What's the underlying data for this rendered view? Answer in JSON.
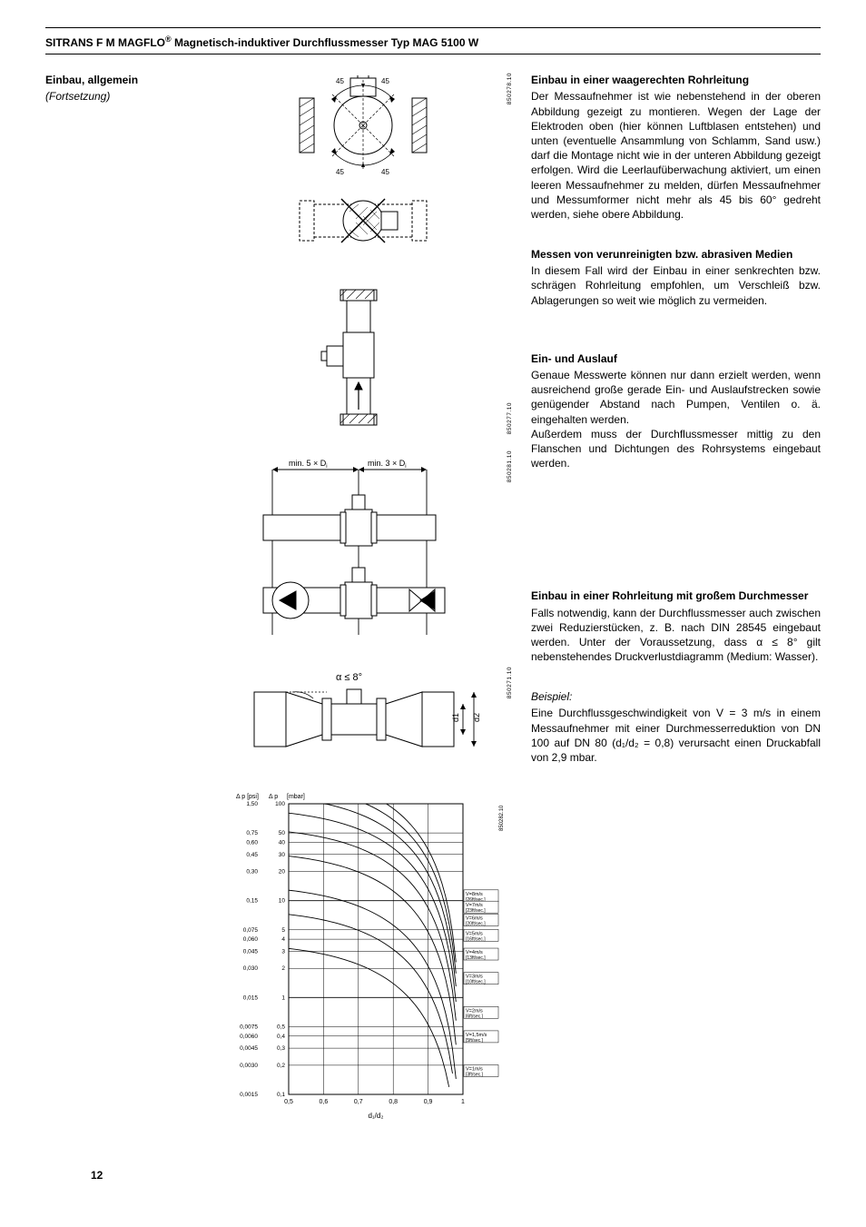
{
  "header": {
    "title_pre": "SITRANS F M MAGFLO",
    "title_post": " Magnetisch-induktiver Durchflussmesser Typ MAG 5100 W"
  },
  "left": {
    "heading": "Einbau, allgemein",
    "sub": "(Fortsetzung)"
  },
  "codes": {
    "d1": "850278.10",
    "d2": "850277.10",
    "d3": "850281.10",
    "d4": "850271.10",
    "chart": "850282.10"
  },
  "diagrams": {
    "d1": {
      "angle_label": "45",
      "angle_count": 4
    },
    "d3": {
      "inlet_label": "min. 5 × D",
      "outlet_label": "min. 3 × D",
      "sub": "i"
    },
    "d4": {
      "alpha_label": "α ≤ 8°",
      "d1_label": "d1",
      "d2_label": "d2"
    }
  },
  "chart": {
    "y1_label": "Δ p [psi]",
    "y2_label": "Δ p",
    "y2_unit": "[mbar]",
    "x_label": "d₁/d₂",
    "x_ticks": [
      "0,5",
      "0,6",
      "0,7",
      "0,8",
      "0,9",
      "1"
    ],
    "y2_ticks": [
      "0,1",
      "0,2",
      "0,3",
      "0,4",
      "0,5",
      "1",
      "2",
      "3",
      "4",
      "5",
      "10",
      "20",
      "30",
      "40",
      "50",
      "100"
    ],
    "y1_ticks": [
      "0,0015",
      "0,0030",
      "0,0045",
      "0,0060",
      "0,0075",
      "0,015",
      "0,030",
      "0,045",
      "0,060",
      "0,075",
      "0,15",
      "0,30",
      "0,45",
      "0,60",
      "0,75",
      "1,50"
    ],
    "series": [
      {
        "label": "V=8m/s",
        "sub": "[26ft/sec.]"
      },
      {
        "label": "V=7m/s",
        "sub": "[23ft/sec.]"
      },
      {
        "label": "V=6m/s",
        "sub": "[20ft/sec.]"
      },
      {
        "label": "V=5m/s",
        "sub": "[16ft/sec.]"
      },
      {
        "label": "V=4m/s",
        "sub": "[13ft/sec.]"
      },
      {
        "label": "V=3m/s",
        "sub": "[10ft/sec.]"
      },
      {
        "label": "V=2m/s",
        "sub": "[6ft/sec.]"
      },
      {
        "label": "V=1,5m/s",
        "sub": "[5ft/sec.]"
      },
      {
        "label": "V=1m/s",
        "sub": "[3ft/sec.]"
      }
    ],
    "grid_color": "#000000",
    "line_color": "#000000",
    "bg": "#ffffff"
  },
  "right": {
    "b1": {
      "h": "Einbau in einer waagerechten Rohrleitung",
      "p": "Der Messaufnehmer ist wie nebenstehend in der oberen Abbildung gezeigt zu montieren. Wegen der Lage der Elektroden oben (hier können Luftblasen entstehen) und unten (eventuelle Ansammlung von Schlamm, Sand usw.) darf die Montage nicht wie in der unteren Abbildung gezeigt erfolgen. Wird die Leerlaufüberwachung aktiviert, um einen leeren Messaufnehmer zu melden, dürfen Messaufnehmer und Messumformer nicht mehr als 45 bis 60° gedreht werden, siehe obere Abbildung."
    },
    "b2": {
      "h": "Messen von verunreinigten bzw. abrasiven Medien",
      "p": "In diesem Fall wird der Einbau in einer senkrechten bzw. schrägen Rohrleitung empfohlen, um Verschleiß bzw. Ablagerungen so weit wie möglich zu vermeiden."
    },
    "b3": {
      "h": "Ein- und Auslauf",
      "p1": "Genaue Messwerte können nur dann erzielt werden, wenn ausreichend große gerade Ein- und Auslaufstrecken sowie genügender Abstand nach Pumpen, Ventilen o. ä. eingehalten werden.",
      "p2": "Außerdem muss der Durchflussmesser mittig zu den Flanschen und Dichtungen des Rohrsystems eingebaut werden."
    },
    "b4": {
      "h": "Einbau in einer Rohrleitung mit großem Durchmesser",
      "p": "Falls notwendig, kann der Durchflussmesser auch zwischen zwei Reduzierstücken, z. B. nach DIN 28545 eingebaut werden. Unter der Voraussetzung, dass α ≤ 8° gilt nebenstehendes Druckverlustdiagramm (Medium: Wasser)."
    },
    "b5": {
      "label": "Beispiel:",
      "p": "Eine Durchflussgeschwindigkeit von V = 3 m/s in einem Messaufnehmer mit einer Durchmesserreduktion von DN 100 auf DN 80 (d₁/d₂ = 0,8) verursacht einen Druckabfall von 2,9 mbar."
    }
  },
  "page_number": "12"
}
